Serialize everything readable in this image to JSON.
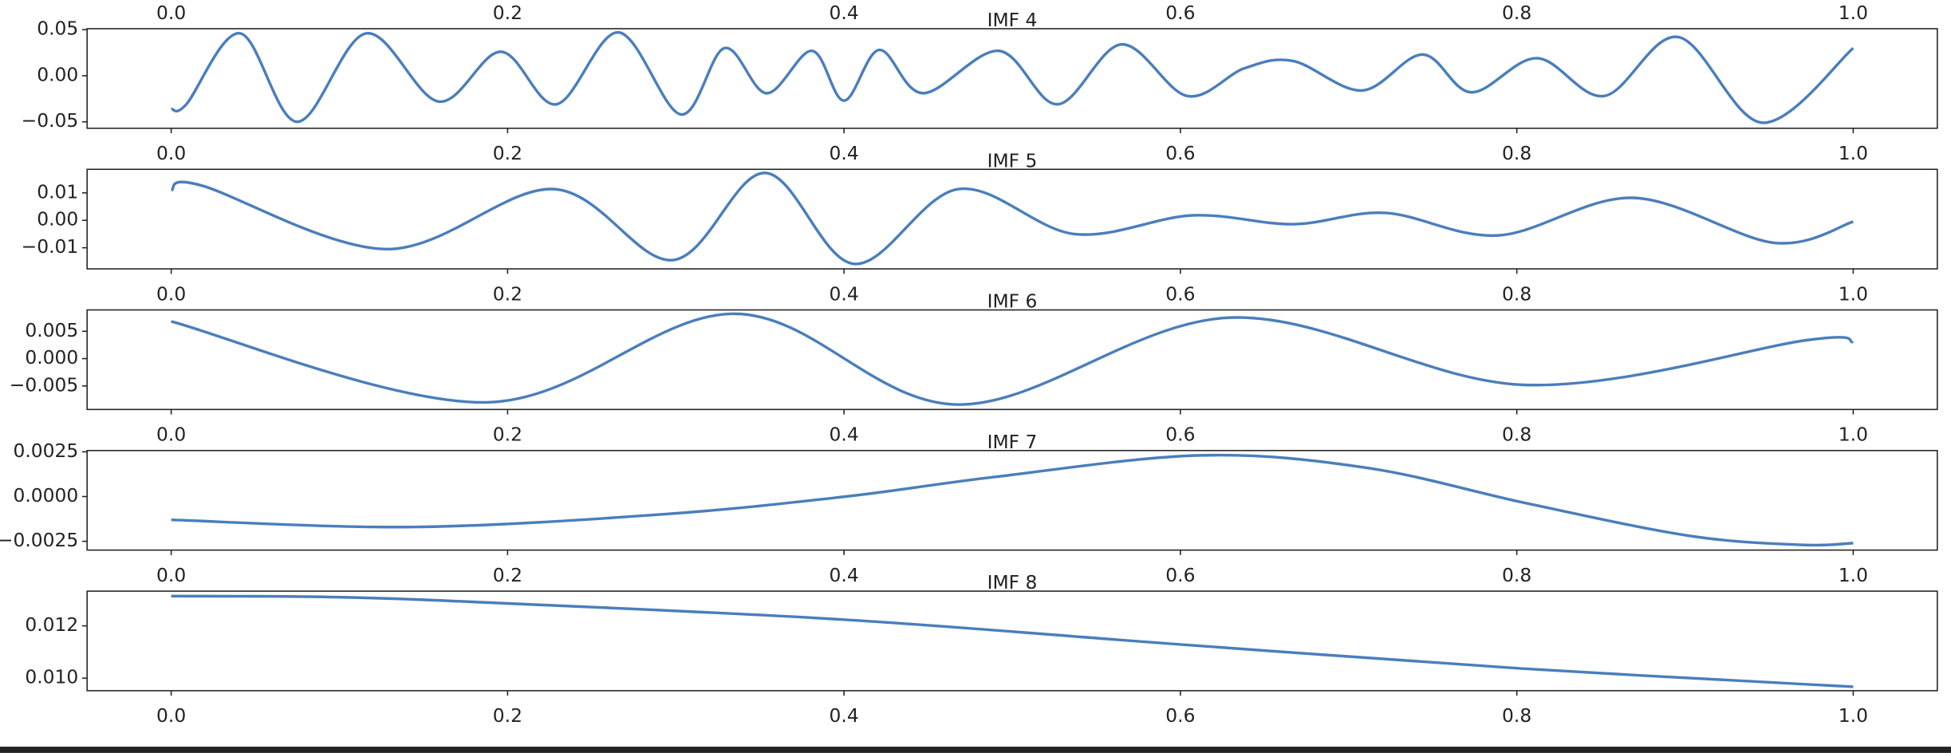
{
  "chart_data": [
    {
      "type": "axis",
      "xlim": [
        -0.05,
        1.05
      ],
      "xticks": [
        {
          "value": 0,
          "label": "0.0"
        },
        0.2,
        0.4,
        0.6,
        0.8,
        {
          "value": 1,
          "label": "1.0"
        }
      ]
    },
    {
      "type": "line",
      "title": "IMF 4",
      "xlim": [
        -0.05,
        1.05
      ],
      "ylim": [
        -0.057,
        0.051
      ],
      "xticks": [
        {
          "value": 0,
          "label": "0.0"
        },
        0.2,
        0.4,
        0.6,
        0.8,
        {
          "value": 1,
          "label": "1.0"
        }
      ],
      "yticks": [
        {
          "value": -0.05,
          "label": "−0.05"
        },
        {
          "value": 0,
          "label": "0.00"
        },
        {
          "value": 0.05,
          "label": "0.05"
        }
      ],
      "x": [
        0,
        0.009,
        0.041,
        0.075,
        0.116,
        0.159,
        0.196,
        0.229,
        0.266,
        0.303,
        0.329,
        0.354,
        0.381,
        0.4,
        0.421,
        0.447,
        0.492,
        0.527,
        0.565,
        0.604,
        0.638,
        0.667,
        0.708,
        0.744,
        0.773,
        0.812,
        0.852,
        0.896,
        0.946,
        1
      ],
      "series": [
        {
          "color": "#4a7ebb",
          "values": [
            -0.036,
            -0.031,
            0.046,
            -0.05,
            0.046,
            -0.028,
            0.026,
            -0.031,
            0.047,
            -0.042,
            0.03,
            -0.019,
            0.027,
            -0.027,
            0.028,
            -0.019,
            0.027,
            -0.031,
            0.034,
            -0.022,
            0.008,
            0.016,
            -0.016,
            0.023,
            -0.018,
            0.019,
            -0.022,
            0.042,
            -0.051,
            0.03
          ]
        }
      ]
    },
    {
      "type": "line",
      "title": "IMF 5",
      "xlim": [
        -0.05,
        1.05
      ],
      "ylim": [
        -0.0177,
        0.0186
      ],
      "xticks": [
        {
          "value": 0,
          "label": "0.0"
        },
        0.2,
        0.4,
        0.6,
        0.8,
        {
          "value": 1,
          "label": "1.0"
        }
      ],
      "yticks": [
        {
          "value": -0.01,
          "label": "−0.01"
        },
        {
          "value": 0,
          "label": "0.00"
        },
        0.01
      ],
      "x": [
        0,
        0.018,
        0.128,
        0.227,
        0.298,
        0.353,
        0.406,
        0.468,
        0.537,
        0.607,
        0.667,
        0.722,
        0.789,
        0.869,
        0.953,
        1
      ],
      "series": [
        {
          "color": "#4a7ebb",
          "values": [
            0.011,
            0.0127,
            -0.0105,
            0.0114,
            -0.0145,
            0.0173,
            -0.0159,
            0.0114,
            -0.005,
            0.0018,
            -0.0014,
            0.0027,
            -0.0055,
            0.0082,
            -0.0082,
            -0.0005
          ]
        }
      ]
    },
    {
      "type": "line",
      "title": "IMF 6",
      "xlim": [
        -0.05,
        1.05
      ],
      "ylim": [
        -0.0093,
        0.0089
      ],
      "xticks": [
        {
          "value": 0,
          "label": "0.0"
        },
        0.2,
        0.4,
        0.6,
        0.8,
        {
          "value": 1,
          "label": "1.0"
        }
      ],
      "yticks": [
        {
          "value": -0.005,
          "label": "−0.005"
        },
        {
          "value": 0,
          "label": "0.000"
        },
        0.005
      ],
      "x": [
        0,
        0.187,
        0.335,
        0.468,
        0.63,
        0.804,
        0.973,
        1
      ],
      "series": [
        {
          "color": "#4a7ebb",
          "values": [
            0.0068,
            -0.008,
            0.0082,
            -0.0084,
            0.0075,
            -0.0048,
            0.0034,
            0.003
          ]
        }
      ]
    },
    {
      "type": "line",
      "title": "IMF 7",
      "xlim": [
        -0.05,
        1.05
      ],
      "ylim": [
        -0.00299,
        0.00257
      ],
      "xticks": [
        {
          "value": 0,
          "label": "0.0"
        },
        0.2,
        0.4,
        0.6,
        0.8,
        {
          "value": 1,
          "label": "1.0"
        }
      ],
      "yticks": [
        {
          "value": -0.0025,
          "label": "−0.0025"
        },
        {
          "value": 0,
          "label": "0.0000"
        },
        0.0025
      ],
      "x": [
        0,
        0.143,
        0.291,
        0.401,
        0.49,
        0.612,
        0.711,
        0.807,
        0.903,
        0.97,
        1
      ],
      "series": [
        {
          "color": "#4a7ebb",
          "values": [
            -0.0013,
            -0.0017,
            -0.001,
            0,
            0.0011,
            0.0023,
            0.0016,
            -0.0004,
            -0.0022,
            -0.0027,
            -0.0026
          ]
        }
      ]
    },
    {
      "type": "line",
      "title": "IMF 8",
      "xlim": [
        -0.05,
        1.05
      ],
      "ylim": [
        0.00952,
        0.01333
      ],
      "xticks": [
        {
          "value": 0,
          "label": "0.0"
        },
        0.2,
        0.4,
        0.6,
        0.8,
        {
          "value": 1,
          "label": "1.0"
        }
      ],
      "yticks": [
        {
          "value": 0.01,
          "label": "0.010"
        },
        0.012
      ],
      "x": [
        0,
        0.099,
        0.2,
        0.4,
        0.6,
        0.8,
        1
      ],
      "series": [
        {
          "color": "#4a7ebb",
          "values": [
            0.01314,
            0.0131,
            0.01286,
            0.01224,
            0.01129,
            0.01038,
            0.00967
          ]
        }
      ]
    }
  ]
}
